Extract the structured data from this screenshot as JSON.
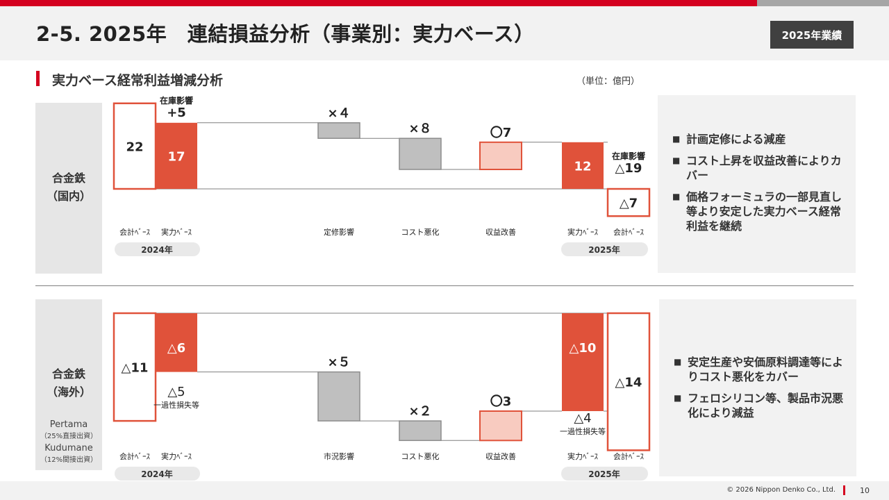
{
  "header": {
    "title": "2-5. 2025年　連結損益分析（事業別：実力ベース）",
    "badge": "2025年業績"
  },
  "section": {
    "title": "実力ベース経常利益増減分析",
    "unit": "（単位：億円）"
  },
  "colors": {
    "accent_red": "#d4001f",
    "bar_red": "#e0523a",
    "bar_pink": "#f8cbc0",
    "bar_gray": "#bfbfbf",
    "outline_red": "#e0523a"
  },
  "domestic": {
    "label_line1": "合金鉄",
    "label_line2": "（国内）",
    "chart": {
      "bars": [
        {
          "label": "22",
          "base": 0,
          "top": 22,
          "style": "outline"
        },
        {
          "label": "17",
          "base": 0,
          "top": 17,
          "style": "red"
        },
        {
          "label": "×４",
          "base": 13,
          "top": 17,
          "style": "gray"
        },
        {
          "label": "×８",
          "base": 5,
          "top": 13,
          "style": "gray"
        },
        {
          "label": "〇7",
          "base": 5,
          "top": 12,
          "style": "pink"
        },
        {
          "label": "12",
          "base": 0,
          "top": 12,
          "style": "red"
        },
        {
          "label": "△7",
          "base": -7,
          "top": 0,
          "style": "outline"
        }
      ],
      "annotations": [
        {
          "line1": "在庫影響",
          "line2": "+5",
          "slot": 1
        },
        {
          "line1": "在庫影響",
          "line2": "△19",
          "slot": 6
        }
      ],
      "categories": [
        "会計ﾍﾞｰｽ",
        "実力ﾍﾞｰｽ",
        "定修影響",
        "コスト悪化",
        "収益改善",
        "実力ﾍﾞｰｽ",
        "会計ﾍﾞｰｽ"
      ],
      "year_left": "2024年",
      "year_right": "2025年"
    },
    "bullets": [
      "計画定修による減産",
      "コスト上昇を収益改善によりカバー",
      "価格フォーミュラの一部見直し等より安定した実力ベース経常利益を継続"
    ]
  },
  "overseas": {
    "label_line1": "合金鉄",
    "label_line2": "（海外）",
    "companies": [
      {
        "name": "Pertama",
        "note": "（25%直接出資）"
      },
      {
        "name": "Kudumane",
        "note": "（12%間接出資）"
      }
    ],
    "chart": {
      "bars": [
        {
          "label": "△11",
          "base": -11,
          "top": 0,
          "style": "outline"
        },
        {
          "label": "△6",
          "base": -6,
          "top": 0,
          "style": "red"
        },
        {
          "label": "×５",
          "base": -11,
          "top": -6,
          "style": "gray"
        },
        {
          "label": "×２",
          "base": -13,
          "top": -11,
          "style": "gray"
        },
        {
          "label": "〇3",
          "base": -13,
          "top": -10,
          "style": "pink"
        },
        {
          "label": "△10",
          "base": -10,
          "top": 0,
          "style": "red"
        },
        {
          "label": "△14",
          "base": -14,
          "top": 0,
          "style": "outline"
        }
      ],
      "annotations": [
        {
          "line1": "△5",
          "line2": "一過性損失等",
          "slot": 1
        },
        {
          "line1": "△4",
          "line2": "一過性損失等",
          "slot": 5
        }
      ],
      "categories": [
        "会計ﾍﾞｰｽ",
        "実力ﾍﾞｰｽ",
        "市況影響",
        "コスト悪化",
        "収益改善",
        "実力ﾍﾞｰｽ",
        "会計ﾍﾞｰｽ"
      ],
      "year_left": "2024年",
      "year_right": "2025年"
    },
    "bullets": [
      "安定生産や安価原料調達等によりコスト悪化をカバー",
      "フェロシリコン等、製品市況悪化により減益"
    ]
  },
  "footer": {
    "copyright": "© 2026 Nippon Denko Co., Ltd.",
    "page": "10"
  }
}
